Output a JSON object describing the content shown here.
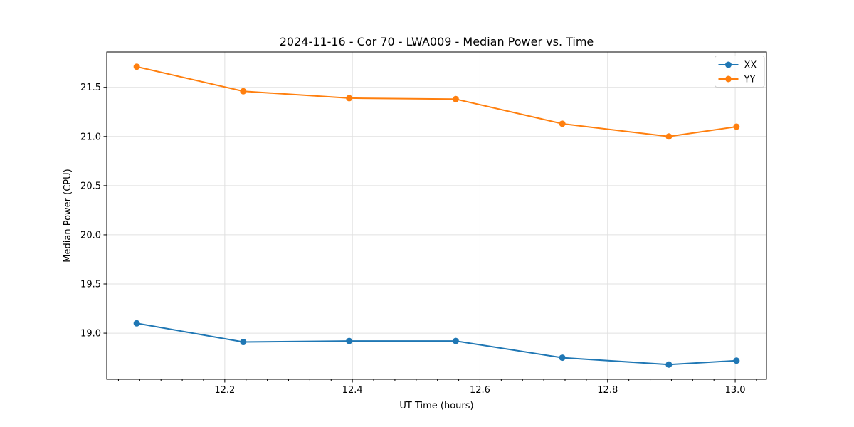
{
  "figure": {
    "title": "2024-11-16 - Cor 70 - LWA009 - Median Power vs. Time",
    "xlabel": "UT Time (hours)",
    "ylabel": "Median Power (CPU)"
  },
  "legend": {
    "position": "upper right",
    "items": [
      {
        "label": "XX",
        "color": "#1f77b4"
      },
      {
        "label": "YY",
        "color": "#ff7f0e"
      }
    ]
  },
  "chart_data": {
    "type": "line",
    "title": "2024-11-16 - Cor 70 - LWA009 - Median Power vs. Time",
    "xlabel": "UT Time (hours)",
    "ylabel": "Median Power (CPU)",
    "x": [
      12.062,
      12.229,
      12.395,
      12.562,
      12.729,
      12.896,
      13.002
    ],
    "series": [
      {
        "name": "XX",
        "color": "#1f77b4",
        "marker": "circle",
        "values": [
          19.1,
          18.91,
          18.92,
          18.92,
          18.75,
          18.68,
          18.72
        ]
      },
      {
        "name": "YY",
        "color": "#ff7f0e",
        "marker": "circle",
        "values": [
          21.71,
          21.46,
          21.39,
          21.38,
          21.13,
          21.0,
          21.1
        ]
      }
    ],
    "xlim": [
      12.015,
      13.049
    ],
    "ylim": [
      18.53,
      21.86
    ],
    "xticks": [
      12.2,
      12.4,
      12.6,
      12.8,
      13.0
    ],
    "yticks": [
      19.0,
      19.5,
      20.0,
      20.5,
      21.0,
      21.5
    ],
    "x_minor_divisions": 6,
    "grid": true,
    "legend_position": "upper right"
  },
  "colors": {
    "series_xx": "#1f77b4",
    "series_yy": "#ff7f0e",
    "grid": "#e0e0e0",
    "spine": "#000000",
    "text": "#000000",
    "legend_border": "#cccccc",
    "background": "#ffffff"
  }
}
